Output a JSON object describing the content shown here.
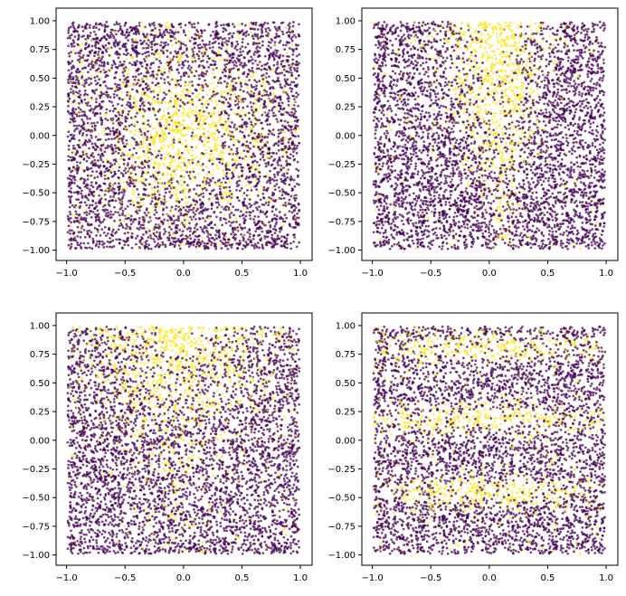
{
  "chart_data": [
    {
      "type": "scatter",
      "panel": "top-left",
      "xlim": [
        -1.09,
        1.1
      ],
      "ylim": [
        -1.09,
        1.11
      ],
      "xticks": [
        "-1.0",
        "-0.5",
        "0.0",
        "0.5",
        "1.0"
      ],
      "yticks": [
        "1.00",
        "0.75",
        "0.50",
        "0.25",
        "0.00",
        "-0.25",
        "-0.50",
        "-0.75",
        "-1.00"
      ],
      "classes": [
        "0",
        "1"
      ],
      "class_colors": [
        "#440154",
        "#fde725"
      ],
      "pattern": "radial-center",
      "grid": false
    },
    {
      "type": "scatter",
      "panel": "top-right",
      "xlim": [
        -1.09,
        1.1
      ],
      "ylim": [
        -1.09,
        1.11
      ],
      "xticks": [
        "-1.0",
        "-0.5",
        "0.0",
        "0.5",
        "1.0"
      ],
      "yticks": [
        "1.00",
        "0.75",
        "0.50",
        "0.25",
        "0.00",
        "-0.25",
        "-0.50",
        "-0.75",
        "-1.00"
      ],
      "classes": [
        "0",
        "1"
      ],
      "class_colors": [
        "#440154",
        "#fde725"
      ],
      "pattern": "cone-top",
      "grid": false
    },
    {
      "type": "scatter",
      "panel": "bottom-left",
      "xlim": [
        -1.09,
        1.1
      ],
      "ylim": [
        -1.09,
        1.11
      ],
      "xticks": [
        "-1.0",
        "-0.5",
        "0.0",
        "0.5",
        "1.0"
      ],
      "yticks": [
        "1.00",
        "0.75",
        "0.50",
        "0.25",
        "0.00",
        "-0.25",
        "-0.50",
        "-0.75",
        "-1.00"
      ],
      "classes": [
        "0",
        "1"
      ],
      "class_colors": [
        "#440154",
        "#fde725"
      ],
      "pattern": "wide-cone-top",
      "grid": false
    },
    {
      "type": "scatter",
      "panel": "bottom-right",
      "xlim": [
        -1.09,
        1.1
      ],
      "ylim": [
        -1.09,
        1.11
      ],
      "xticks": [
        "-1.0",
        "-0.5",
        "0.0",
        "0.5",
        "1.0"
      ],
      "yticks": [
        "1.00",
        "0.75",
        "0.50",
        "0.25",
        "0.00",
        "-0.25",
        "-0.50",
        "-0.75",
        "-1.00"
      ],
      "classes": [
        "0",
        "1"
      ],
      "class_colors": [
        "#440154",
        "#fde725"
      ],
      "pattern": "horizontal-bands",
      "grid": false
    }
  ]
}
